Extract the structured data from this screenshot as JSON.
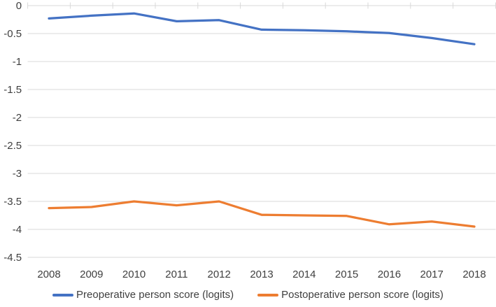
{
  "chart_data": {
    "type": "line",
    "categories": [
      "2008",
      "2009",
      "2010",
      "2011",
      "2012",
      "2013",
      "2014",
      "2015",
      "2016",
      "2017",
      "2018"
    ],
    "series": [
      {
        "name": "Preoperative person score (logits)",
        "color": "#4472C4",
        "values": [
          -0.23,
          -0.18,
          -0.14,
          -0.28,
          -0.26,
          -0.43,
          -0.44,
          -0.46,
          -0.49,
          -0.58,
          -0.69
        ]
      },
      {
        "name": "Postoperative person score (logits)",
        "color": "#ED7D31",
        "values": [
          -3.62,
          -3.6,
          -3.5,
          -3.57,
          -3.5,
          -3.74,
          -3.75,
          -3.76,
          -3.91,
          -3.86,
          -3.95
        ]
      }
    ],
    "y_axis": {
      "max": 0,
      "min": -4.5,
      "step": 0.5,
      "tick_labels": [
        "0",
        "-0.5",
        "-1",
        "-1.5",
        "-2",
        "-2.5",
        "-3",
        "-3.5",
        "-4",
        "-4.5"
      ]
    },
    "x_axis": {
      "label": ""
    },
    "title": "",
    "grid": true,
    "legend_position": "bottom",
    "colors": {
      "gridline": "#D9D9D9",
      "text": "#3f3f3f",
      "background": "#FFFFFF"
    }
  }
}
